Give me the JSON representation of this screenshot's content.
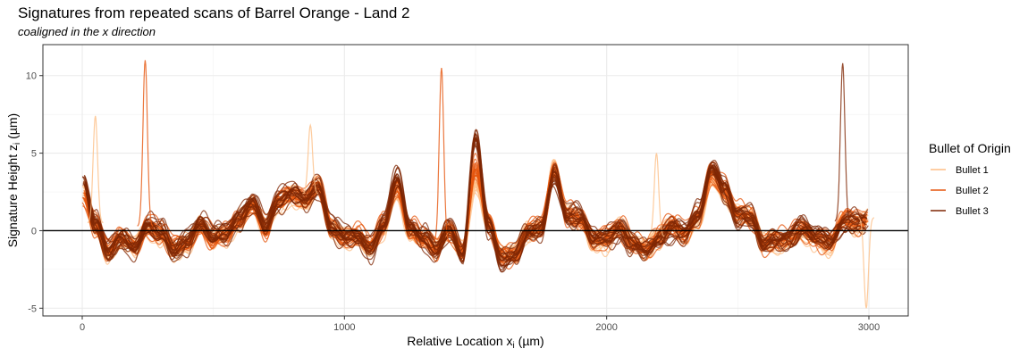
{
  "chart_data": {
    "type": "line",
    "title": "Signatures from repeated scans of Barrel Orange - Land 2",
    "subtitle": "coaligned in the x direction",
    "xlabel": "Relative Location x",
    "xlabel_sub": "i",
    "xlabel_unit": " (µm)",
    "ylabel": "Signature Height z",
    "ylabel_sub": "i",
    "ylabel_unit": " (µm)",
    "xlim": [
      -150,
      3150
    ],
    "ylim": [
      -5.5,
      12
    ],
    "x_ticks": [
      0,
      1000,
      2000,
      3000
    ],
    "x_tick_labels": [
      "0",
      "1000",
      "2000",
      "3000"
    ],
    "y_ticks": [
      -5,
      0,
      5,
      10
    ],
    "y_tick_labels": [
      "-5",
      "0",
      "5",
      "10"
    ],
    "grid": true,
    "hline_y": 0,
    "legend": {
      "title": "Bullet of Origin",
      "placement": "right"
    },
    "series": [
      {
        "name": "Bullet 1",
        "color": "#fdbe85",
        "scans": 18,
        "x": [
          0,
          50,
          100,
          150,
          200,
          250,
          300,
          350,
          400,
          450,
          500,
          550,
          600,
          650,
          700,
          750,
          800,
          850,
          900,
          950,
          1000,
          1050,
          1100,
          1150,
          1200,
          1250,
          1300,
          1350,
          1400,
          1450,
          1500,
          1550,
          1600,
          1650,
          1700,
          1750,
          1800,
          1850,
          1900,
          1950,
          2000,
          2050,
          2100,
          2150,
          2200,
          2250,
          2300,
          2350,
          2400,
          2450,
          2500,
          2550,
          2600,
          2650,
          2700,
          2750,
          2800,
          2850,
          2900,
          2950,
          3000
        ],
        "values": [
          2.8,
          0.5,
          -1.5,
          -0.6,
          -0.8,
          0.3,
          -0.3,
          -1.2,
          -0.7,
          0.6,
          -0.4,
          -0.2,
          0.8,
          1.9,
          0.3,
          1.8,
          2.4,
          2.0,
          3.1,
          0.2,
          -0.4,
          -0.3,
          -1.0,
          0.3,
          2.6,
          0.1,
          -0.4,
          -1.0,
          -0.1,
          -1.0,
          3.2,
          0.6,
          -1.6,
          -1.3,
          0.1,
          0.4,
          4.0,
          1.1,
          0.9,
          -0.6,
          -0.6,
          0.3,
          -0.6,
          -1.0,
          -0.3,
          0.4,
          -0.2,
          0.9,
          3.5,
          2.4,
          1.2,
          1.0,
          -0.6,
          -0.7,
          -0.5,
          0.0,
          -0.5,
          -0.8,
          0.8,
          0.4,
          0.9
        ]
      },
      {
        "name": "Bullet 2",
        "color": "#e6550d",
        "scans": 18,
        "x": [
          0,
          50,
          100,
          150,
          200,
          250,
          300,
          350,
          400,
          450,
          500,
          550,
          600,
          650,
          700,
          750,
          800,
          850,
          900,
          950,
          1000,
          1050,
          1100,
          1150,
          1200,
          1250,
          1300,
          1350,
          1400,
          1450,
          1500,
          1550,
          1600,
          1650,
          1700,
          1750,
          1800,
          1850,
          1900,
          1950,
          2000,
          2050,
          2100,
          2150,
          2200,
          2250,
          2300,
          2350,
          2400,
          2450,
          2500,
          2550,
          2600,
          2650,
          2700,
          2750,
          2800,
          2850,
          2900,
          2950,
          3000
        ],
        "values": [
          2.5,
          0.4,
          -1.3,
          -0.5,
          -0.9,
          0.4,
          -0.2,
          -1.1,
          -0.8,
          0.5,
          -0.5,
          -0.3,
          0.7,
          1.8,
          0.2,
          1.9,
          2.3,
          2.2,
          3.0,
          0.1,
          -0.5,
          -0.2,
          -0.9,
          0.4,
          2.8,
          0.2,
          -0.5,
          -1.1,
          0.0,
          -1.2,
          4.0,
          0.5,
          -1.7,
          -1.4,
          0.0,
          0.3,
          3.8,
          1.2,
          0.8,
          -0.5,
          -0.5,
          0.2,
          -0.7,
          -1.1,
          -0.4,
          0.3,
          -0.1,
          1.0,
          3.8,
          2.6,
          1.1,
          0.9,
          -0.7,
          -0.6,
          -0.4,
          0.1,
          -0.4,
          -0.7,
          0.7,
          0.5,
          0.8
        ]
      },
      {
        "name": "Bullet 3",
        "color": "#7f2704",
        "scans": 18,
        "x": [
          0,
          50,
          100,
          150,
          200,
          250,
          300,
          350,
          400,
          450,
          500,
          550,
          600,
          650,
          700,
          750,
          800,
          850,
          900,
          950,
          1000,
          1050,
          1100,
          1150,
          1200,
          1250,
          1300,
          1350,
          1400,
          1450,
          1500,
          1550,
          1600,
          1650,
          1700,
          1750,
          1800,
          1850,
          1900,
          1950,
          2000,
          2050,
          2100,
          2150,
          2200,
          2250,
          2300,
          2350,
          2400,
          2450,
          2500,
          2550,
          2600,
          2650,
          2700,
          2750,
          2800,
          2850,
          2900,
          2950,
          3000
        ],
        "values": [
          3.5,
          0.6,
          -1.4,
          -0.4,
          -1.0,
          0.5,
          -0.1,
          -1.3,
          -0.6,
          0.7,
          -0.3,
          -0.1,
          0.9,
          2.0,
          0.4,
          2.0,
          2.5,
          2.1,
          2.9,
          0.3,
          -0.3,
          -0.4,
          -1.1,
          0.5,
          3.5,
          0.3,
          -0.4,
          -1.2,
          0.2,
          -1.5,
          6.0,
          0.4,
          -1.9,
          -1.5,
          -0.1,
          0.2,
          3.6,
          1.0,
          1.0,
          -0.4,
          -0.4,
          0.1,
          -0.8,
          -1.2,
          -0.5,
          0.2,
          0.0,
          1.1,
          4.2,
          2.8,
          1.0,
          0.8,
          -0.8,
          -0.5,
          -0.3,
          0.2,
          -0.3,
          -0.6,
          0.6,
          0.6,
          0.7
        ]
      }
    ],
    "spikes": [
      {
        "series": "Bullet 1",
        "x": 50,
        "y": 7.4
      },
      {
        "series": "Bullet 1",
        "x": 870,
        "y": 6.8
      },
      {
        "series": "Bullet 1",
        "x": 2190,
        "y": 5.0
      },
      {
        "series": "Bullet 1",
        "x": 2990,
        "y": -5.0
      },
      {
        "series": "Bullet 2",
        "x": 240,
        "y": 11.0
      },
      {
        "series": "Bullet 2",
        "x": 1370,
        "y": 10.5
      },
      {
        "series": "Bullet 3",
        "x": 2900,
        "y": 10.8
      }
    ]
  }
}
